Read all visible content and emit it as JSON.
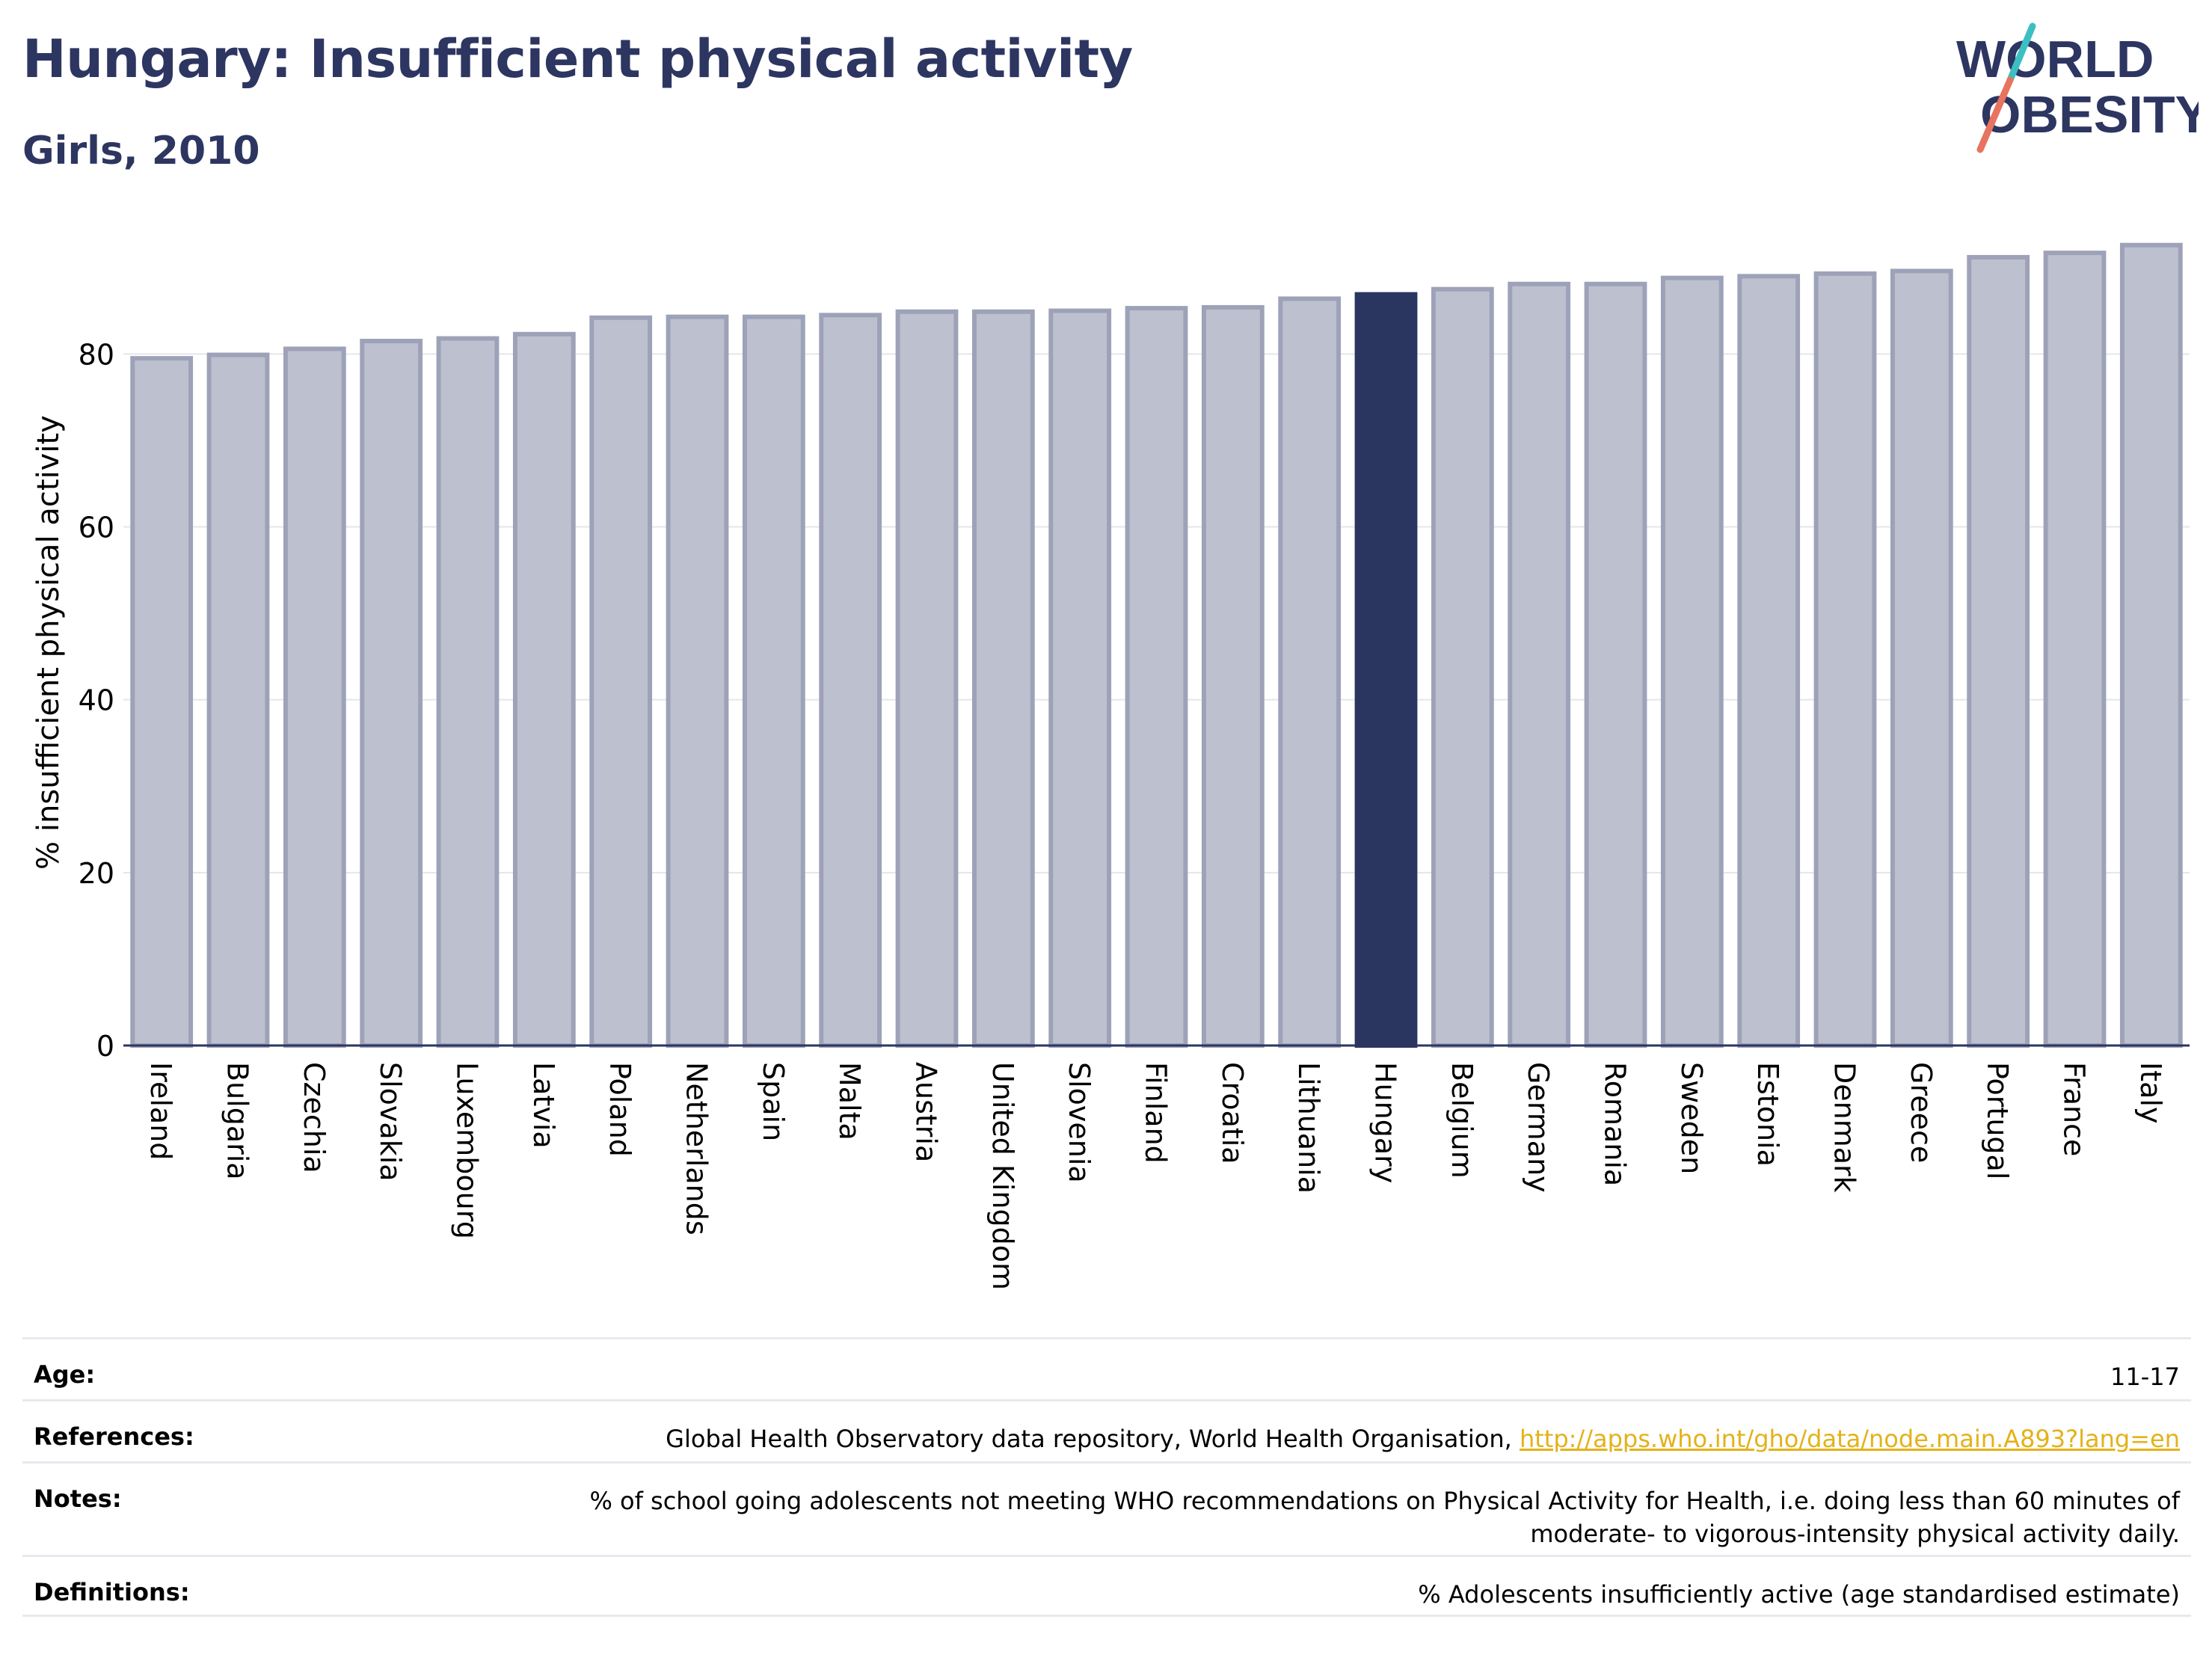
{
  "header": {
    "title": "Hungary: Insufficient physical activity",
    "subtitle": "Girls, 2010"
  },
  "logo": {
    "line1": "WORLD",
    "line2": "OBESITY"
  },
  "chart_data": {
    "type": "bar",
    "title": "Hungary: Insufficient physical activity",
    "subtitle": "Girls, 2010",
    "xlabel": "",
    "ylabel": "% insufficient physical activity",
    "ylim": [
      0,
      95
    ],
    "yticks": [
      0,
      20,
      40,
      60,
      80
    ],
    "grid": true,
    "highlight": "Hungary",
    "categories": [
      "Ireland",
      "Bulgaria",
      "Czechia",
      "Slovakia",
      "Luxembourg",
      "Latvia",
      "Poland",
      "Netherlands",
      "Spain",
      "Malta",
      "Austria",
      "United Kingdom",
      "Slovenia",
      "Finland",
      "Croatia",
      "Lithuania",
      "Hungary",
      "Belgium",
      "Germany",
      "Romania",
      "Sweden",
      "Estonia",
      "Denmark",
      "Greece",
      "Portugal",
      "France",
      "Italy"
    ],
    "values": [
      79.5,
      79.9,
      80.6,
      81.5,
      81.8,
      82.3,
      84.2,
      84.3,
      84.3,
      84.5,
      84.9,
      84.9,
      85.0,
      85.3,
      85.4,
      86.4,
      86.9,
      87.5,
      88.1,
      88.1,
      88.8,
      89.0,
      89.3,
      89.6,
      91.2,
      91.7,
      92.6
    ]
  },
  "colors": {
    "bar": "#bdc0ce",
    "bar_edge": "#9ea2b8",
    "highlight": "#2a3560",
    "title": "#2d3561",
    "logo_teal": "#3cbfc3",
    "logo_coral": "#e8735f",
    "link": "#e3b21a"
  },
  "meta": {
    "age_label": "Age:",
    "age_value": "11-17",
    "references_label": "References:",
    "references_text": "Global Health Observatory data repository, World Health Organisation, ",
    "references_link": "http://apps.who.int/gho/data/node.main.A893?lang=en",
    "notes_label": "Notes:",
    "notes_line1": "% of school going adolescents not meeting WHO recommendations on Physical Activity for Health, i.e. doing less than 60 minutes of",
    "notes_line2": "moderate- to vigorous-intensity physical activity daily.",
    "definitions_label": "Definitions:",
    "definitions_value": "% Adolescents insufficiently active (age standardised estimate)"
  }
}
